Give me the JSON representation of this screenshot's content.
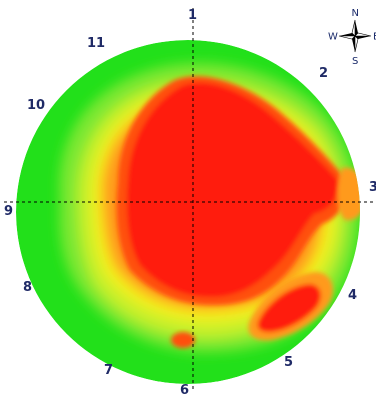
{
  "map": {
    "clock_labels": [
      {
        "id": "1",
        "text": "1"
      },
      {
        "id": "2",
        "text": "2"
      },
      {
        "id": "3",
        "text": "3"
      },
      {
        "id": "4",
        "text": "4"
      },
      {
        "id": "5",
        "text": "5"
      },
      {
        "id": "6",
        "text": "6"
      },
      {
        "id": "7",
        "text": "7"
      },
      {
        "id": "8",
        "text": "8"
      },
      {
        "id": "9",
        "text": "9"
      },
      {
        "id": "10",
        "text": "10"
      },
      {
        "id": "11",
        "text": "11"
      }
    ],
    "compass": {
      "north": "N",
      "south": "S",
      "west": "W",
      "east": "E",
      "icon": "compass-rose-icon"
    },
    "colors": {
      "outer": "#22e01a",
      "green_light": "#7de832",
      "yellow_green": "#c8f02a",
      "yellow": "#f4f01a",
      "orange": "#ff9a1a",
      "red_orange": "#ff5010",
      "red": "#ff1a0a",
      "crosshair": "#000000"
    }
  }
}
